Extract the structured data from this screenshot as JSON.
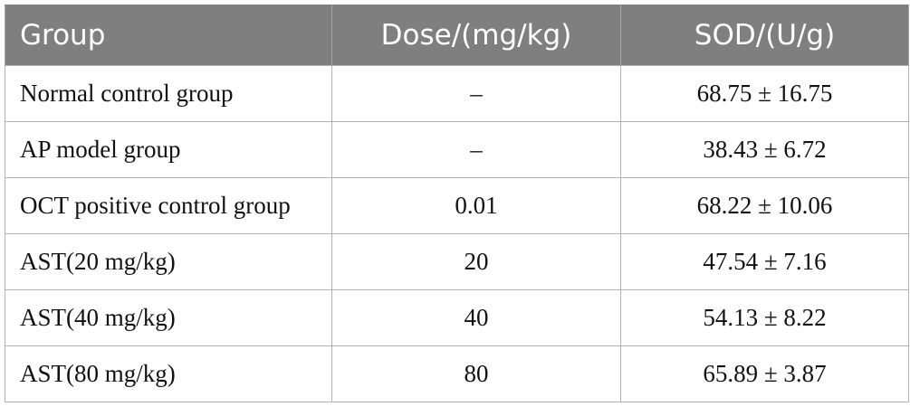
{
  "table": {
    "headers": [
      "Group",
      "Dose/(mg/kg)",
      "SOD/(U/g)"
    ],
    "rows": [
      [
        "Normal control group",
        "–",
        "68.75 ± 16.75"
      ],
      [
        "AP model group",
        "–",
        "38.43 ± 6.72"
      ],
      [
        "OCT positive control group",
        "0.01",
        "68.22 ± 10.06"
      ],
      [
        "AST(20 mg/kg)",
        "20",
        "47.54 ± 7.16"
      ],
      [
        "AST(40 mg/kg)",
        "40",
        "54.13 ± 8.22"
      ],
      [
        "AST(80 mg/kg)",
        "80",
        "65.89 ± 3.87"
      ]
    ]
  },
  "colors": {
    "header_bg": "#7f7f7f",
    "header_text": "#ffffff",
    "grid_line": "#b3b3b3"
  }
}
